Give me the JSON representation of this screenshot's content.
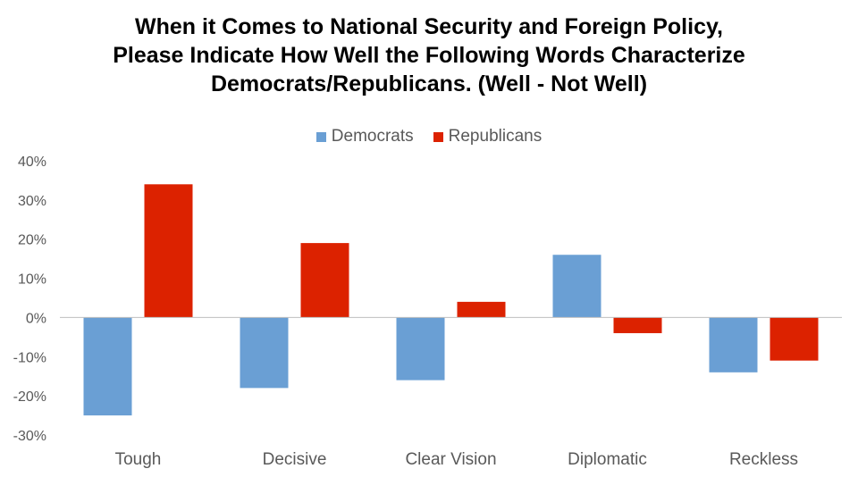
{
  "chart_data": {
    "type": "bar",
    "title_lines": [
      "When it Comes to National Security and Foreign Policy,",
      "Please Indicate How Well the Following Words Characterize",
      "Democrats/Republicans. (Well - Not Well)"
    ],
    "categories": [
      "Tough",
      "Decisive",
      "Clear Vision",
      "Diplomatic",
      "Reckless"
    ],
    "series": [
      {
        "name": "Democrats",
        "color": "#6a9fd4",
        "values": [
          -25,
          -18,
          -16,
          16,
          -14
        ]
      },
      {
        "name": "Republicans",
        "color": "#dc2200",
        "values": [
          34,
          19,
          4,
          -4,
          -11
        ]
      }
    ],
    "ylim": [
      -30,
      40
    ],
    "yticks": [
      40,
      30,
      20,
      10,
      0,
      -10,
      -20,
      -30
    ],
    "ytick_labels": [
      "40%",
      "30%",
      "20%",
      "10%",
      "0%",
      "-10%",
      "-20%",
      "-30%"
    ],
    "xlabel": "",
    "ylabel": "",
    "legend_position": "top-center",
    "grid": false
  }
}
